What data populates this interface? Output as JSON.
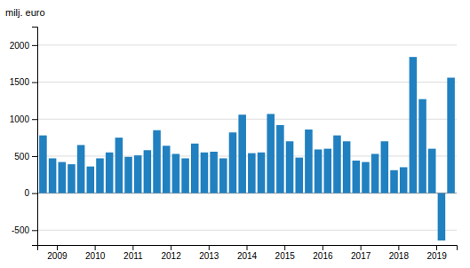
{
  "chart_data": {
    "type": "bar",
    "y_label": "milj. euro",
    "categories": [
      null,
      "2009",
      null,
      null,
      null,
      "2010",
      null,
      null,
      null,
      "2011",
      null,
      null,
      null,
      "2012",
      null,
      null,
      null,
      "2013",
      null,
      null,
      null,
      "2014",
      null,
      null,
      null,
      "2015",
      null,
      null,
      null,
      "2016",
      null,
      null,
      null,
      "2017",
      null,
      null,
      null,
      "2018",
      null,
      null,
      null,
      "2019",
      null,
      null
    ],
    "values": [
      780,
      470,
      420,
      390,
      650,
      360,
      470,
      550,
      750,
      490,
      510,
      580,
      850,
      640,
      530,
      470,
      670,
      550,
      560,
      470,
      820,
      1060,
      540,
      550,
      1070,
      920,
      700,
      480,
      860,
      590,
      600,
      780,
      700,
      440,
      420,
      530,
      700,
      310,
      350,
      1840,
      1270,
      600,
      -640,
      1560
    ],
    "color": "#2080c0",
    "ylim": [
      -700,
      2250
    ],
    "yticks": [
      -500,
      0,
      500,
      1000,
      1500,
      2000
    ],
    "grid": true
  }
}
